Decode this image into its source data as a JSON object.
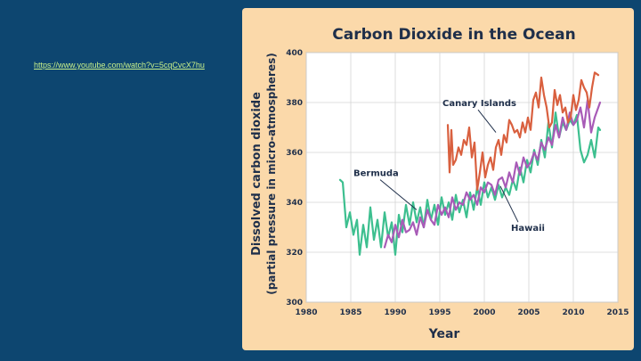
{
  "slide": {
    "link_text": "https://www.youtube.com/watch?v=5cqCvcX7hu",
    "colors": {
      "background": "#0d4670",
      "panel": "#fbd9aa",
      "link": "#c8f08a"
    }
  },
  "chart_data": {
    "type": "line",
    "title": "Carbon Dioxide in the Ocean",
    "xlabel": "Year",
    "ylabel": "Dissolved carbon dioxide",
    "ylabel_sub": "(partial pressure in micro-atmospheres)",
    "xlim": [
      1980,
      2015
    ],
    "ylim": [
      300,
      400
    ],
    "x_ticks": [
      1980,
      1985,
      1990,
      1995,
      2000,
      2005,
      2010,
      2015
    ],
    "y_ticks": [
      300,
      320,
      340,
      360,
      380,
      400
    ],
    "x_tick_labels": [
      "1980",
      "1985",
      "1990",
      "1995",
      "2000",
      "2005",
      "2010",
      "2015"
    ],
    "y_tick_labels": [
      "300",
      "320",
      "340",
      "360",
      "380",
      "400"
    ],
    "annotations": [
      {
        "text": "Canary Islands",
        "series": "Canary Islands",
        "label_x": 1995.3,
        "label_y": 378.5,
        "point_x": 2001.3,
        "point_y": 368
      },
      {
        "text": "Bermuda",
        "series": "Bermuda",
        "label_x": 1985.3,
        "label_y": 350.5,
        "point_x": 1992.4,
        "point_y": 337
      },
      {
        "text": "Hawaii",
        "series": "Hawaii",
        "label_x": 2003,
        "label_y": 328.5,
        "point_x": 2001.8,
        "point_y": 346.5
      }
    ],
    "series": [
      {
        "name": "Bermuda",
        "color": "#3dbf8f",
        "x": [
          1983.8,
          1984.1,
          1984.5,
          1984.9,
          1985.3,
          1985.7,
          1986.0,
          1986.4,
          1986.8,
          1987.2,
          1987.6,
          1988.0,
          1988.4,
          1988.8,
          1989.2,
          1989.6,
          1990.0,
          1990.4,
          1990.8,
          1991.2,
          1991.6,
          1992.0,
          1992.4,
          1992.8,
          1993.2,
          1993.6,
          1994.0,
          1994.4,
          1994.8,
          1995.2,
          1995.6,
          1996.0,
          1996.4,
          1996.8,
          1997.2,
          1997.6,
          1998.0,
          1998.4,
          1998.8,
          1999.2,
          1999.6,
          2000.0,
          2000.4,
          2000.8,
          2001.2,
          2001.6,
          2002.0,
          2002.4,
          2002.8,
          2003.2,
          2003.6,
          2004.0,
          2004.4,
          2004.8,
          2005.2,
          2005.6,
          2006.0,
          2006.4,
          2006.8,
          2007.2,
          2007.6,
          2008.0,
          2008.4,
          2008.8,
          2009.2,
          2009.6,
          2010.0,
          2010.4,
          2010.8,
          2011.2,
          2011.6,
          2012.0,
          2012.4,
          2012.8,
          2013.0
        ],
        "values": [
          349,
          348,
          330,
          336,
          327,
          333,
          319,
          331,
          322,
          338,
          325,
          333,
          322,
          336,
          326,
          332,
          319,
          335,
          328,
          339,
          331,
          340,
          332,
          338,
          330,
          341,
          333,
          339,
          331,
          342,
          335,
          340,
          333,
          343,
          336,
          341,
          334,
          344,
          337,
          346,
          339,
          348,
          342,
          346,
          341,
          347,
          342,
          346,
          343,
          349,
          345,
          354,
          348,
          357,
          352,
          361,
          355,
          365,
          358,
          372,
          362,
          376,
          366,
          372,
          369,
          373,
          371,
          375,
          361,
          356,
          359,
          365,
          358,
          370,
          369
        ]
      },
      {
        "name": "Hawaii",
        "color": "#a85bb7",
        "x": [
          1988.8,
          1989.2,
          1989.6,
          1990.0,
          1990.4,
          1990.8,
          1991.2,
          1991.6,
          1992.0,
          1992.4,
          1992.8,
          1993.2,
          1993.6,
          1994.0,
          1994.4,
          1994.8,
          1995.2,
          1995.6,
          1996.0,
          1996.4,
          1996.8,
          1997.2,
          1997.6,
          1998.0,
          1998.4,
          1998.8,
          1999.2,
          1999.6,
          2000.0,
          2000.4,
          2000.8,
          2001.2,
          2001.6,
          2002.0,
          2002.4,
          2002.8,
          2003.2,
          2003.6,
          2004.0,
          2004.4,
          2004.8,
          2005.2,
          2005.6,
          2006.0,
          2006.4,
          2006.8,
          2007.2,
          2007.6,
          2008.0,
          2008.4,
          2008.8,
          2009.2,
          2009.6,
          2010.0,
          2010.4,
          2010.8,
          2011.2,
          2011.6,
          2012.0,
          2012.4,
          2012.8,
          2013.0
        ],
        "values": [
          322,
          327,
          324,
          331,
          326,
          333,
          328,
          329,
          332,
          327,
          334,
          330,
          337,
          333,
          331,
          339,
          335,
          338,
          334,
          342,
          337,
          340,
          339,
          344,
          341,
          343,
          339,
          346,
          344,
          348,
          347,
          343,
          349,
          350,
          346,
          352,
          348,
          356,
          351,
          358,
          354,
          356,
          360,
          357,
          364,
          361,
          366,
          363,
          371,
          366,
          374,
          369,
          376,
          371,
          373,
          378,
          370,
          381,
          368,
          374,
          378,
          380
        ]
      },
      {
        "name": "Canary Islands",
        "color": "#d9603f",
        "x": [
          1995.9,
          1996.1,
          1996.3,
          1996.5,
          1996.8,
          1997.1,
          1997.4,
          1997.7,
          1998.0,
          1998.3,
          1998.6,
          1998.9,
          1999.2,
          1999.5,
          1999.8,
          2000.1,
          2000.4,
          2000.7,
          2001.0,
          2001.3,
          2001.6,
          2001.9,
          2002.2,
          2002.5,
          2002.8,
          2003.1,
          2003.4,
          2003.7,
          2004.0,
          2004.3,
          2004.6,
          2004.9,
          2005.2,
          2005.5,
          2005.8,
          2006.1,
          2006.4,
          2006.7,
          2007.0,
          2007.3,
          2007.6,
          2007.9,
          2008.2,
          2008.5,
          2008.8,
          2009.1,
          2009.4,
          2009.7,
          2010.0,
          2010.3,
          2010.6,
          2010.9,
          2011.2,
          2011.5,
          2011.8,
          2012.1,
          2012.4,
          2012.8
        ],
        "values": [
          371,
          352,
          369,
          355,
          357,
          362,
          359,
          365,
          363,
          370,
          358,
          364,
          345,
          352,
          360,
          350,
          355,
          358,
          353,
          362,
          365,
          359,
          367,
          364,
          373,
          371,
          368,
          369,
          366,
          372,
          368,
          374,
          369,
          381,
          384,
          378,
          390,
          383,
          378,
          370,
          372,
          385,
          379,
          383,
          376,
          378,
          372,
          374,
          383,
          377,
          381,
          389,
          386,
          384,
          378,
          386,
          392,
          391
        ]
      }
    ]
  }
}
